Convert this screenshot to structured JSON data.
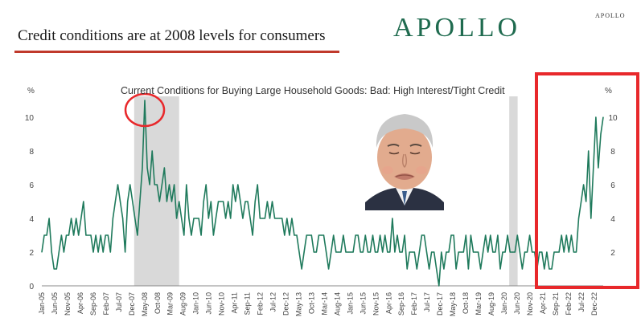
{
  "headline": "Credit conditions are at 2008 levels for consumers",
  "logo": {
    "main": "APOLLO",
    "small": "APOLLO"
  },
  "colors": {
    "line": "#1f7a5c",
    "logo": "#1f6b4f",
    "highlight": "#e8282b",
    "recession": "#d9d9d9",
    "rule": "#c0392b"
  },
  "annotations": [
    {
      "shape": "circle",
      "target": "2008 peak"
    },
    {
      "shape": "rectangle",
      "target": "2021-2022 surge"
    },
    {
      "shape": "photo",
      "icon": "frowning-man-portrait-icon"
    }
  ],
  "chart_data": {
    "type": "line",
    "title": "Current Conditions for Buying Large Household Goods: Bad: High Interest/Tight Credit",
    "ylabel_left": "%",
    "ylabel_right": "%",
    "ylim": [
      0,
      11
    ],
    "yticks": [
      0,
      2,
      4,
      6,
      8,
      10
    ],
    "x_tick_labels": [
      "Jan-05",
      "Jun-05",
      "Nov-05",
      "Apr-06",
      "Sep-06",
      "Feb-07",
      "Jul-07",
      "Dec-07",
      "May-08",
      "Oct-08",
      "Mar-09",
      "Aug-09",
      "Jan-10",
      "Jun-10",
      "Nov-10",
      "Apr-11",
      "Sep-11",
      "Feb-12",
      "Jul-12",
      "Dec-12",
      "May-13",
      "Oct-13",
      "Mar-14",
      "Aug-14",
      "Jan-15",
      "Jun-15",
      "Nov-15",
      "Apr-16",
      "Sep-16",
      "Feb-17",
      "Jul-17",
      "Dec-17",
      "May-18",
      "Oct-18",
      "Mar-19",
      "Aug-19",
      "Jan-20",
      "Jun-20",
      "Nov-20",
      "Apr-21",
      "Sep-21",
      "Feb-22",
      "Jul-22",
      "Dec-22"
    ],
    "recession_shading": [
      [
        "Dec-07",
        "Jun-09"
      ],
      [
        "Feb-20",
        "Apr-20"
      ]
    ],
    "series": [
      {
        "values": [
          2,
          3,
          3,
          4,
          2,
          1,
          1,
          2,
          3,
          2,
          3,
          3,
          4,
          3,
          4,
          3,
          4,
          5,
          3,
          3,
          3,
          2,
          3,
          2,
          3,
          2,
          3,
          3,
          2,
          4,
          5,
          6,
          5,
          4,
          2,
          5,
          6,
          5,
          4,
          3,
          5,
          7,
          11,
          7,
          6,
          8,
          6,
          6,
          5,
          6,
          7,
          5,
          6,
          5,
          6,
          4,
          5,
          4,
          3,
          6,
          4,
          3,
          4,
          4,
          4,
          3,
          5,
          6,
          4,
          5,
          3,
          4,
          5,
          5,
          5,
          4,
          5,
          4,
          6,
          5,
          6,
          5,
          4,
          5,
          5,
          4,
          3,
          5,
          6,
          4,
          4,
          4,
          5,
          4,
          5,
          4,
          4,
          4,
          4,
          3,
          4,
          3,
          4,
          3,
          3,
          2,
          1,
          2,
          3,
          3,
          3,
          2,
          2,
          3,
          3,
          3,
          2,
          1,
          2,
          3,
          2,
          2,
          2,
          3,
          2,
          2,
          2,
          2,
          3,
          3,
          2,
          2,
          3,
          2,
          2,
          3,
          2,
          2,
          3,
          2,
          3,
          2,
          2,
          4,
          2,
          3,
          2,
          2,
          3,
          1,
          2,
          2,
          2,
          1,
          2,
          3,
          3,
          2,
          1,
          2,
          2,
          1,
          0,
          2,
          1,
          2,
          2,
          3,
          3,
          1,
          2,
          2,
          2,
          3,
          1,
          3,
          2,
          2,
          2,
          1,
          2,
          3,
          2,
          3,
          2,
          2,
          3,
          1,
          2,
          2,
          3,
          2,
          2,
          2,
          3,
          2,
          1,
          2,
          2,
          3,
          2,
          2,
          1,
          2,
          2,
          1,
          2,
          1,
          1,
          2,
          2,
          2,
          3,
          2,
          3,
          2,
          3,
          2,
          2,
          4,
          5,
          6,
          5,
          8,
          4,
          7,
          10,
          7,
          9,
          10
        ]
      }
    ]
  }
}
